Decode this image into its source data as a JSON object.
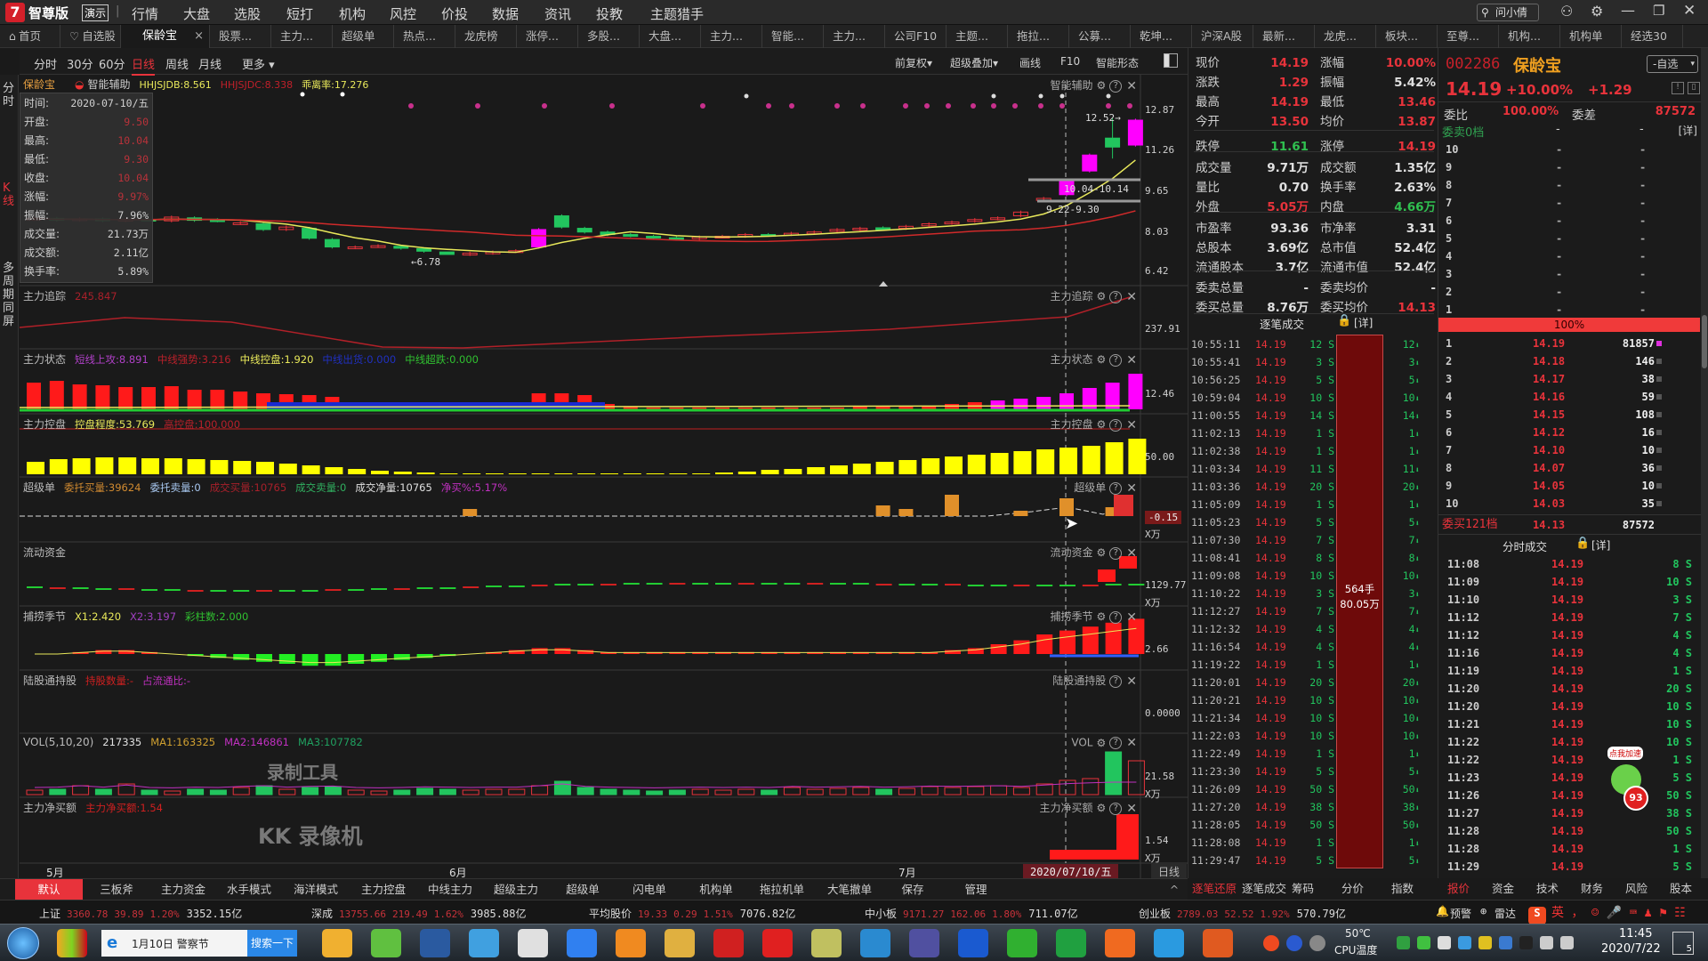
{
  "menu": {
    "logo_glyph": "7",
    "edition": "智尊版",
    "badge": "演示",
    "items": [
      "行情",
      "大盘",
      "选股",
      "短打",
      "机构",
      "风控",
      "价投",
      "数据",
      "资讯",
      "投教",
      "主题猎手"
    ],
    "search_label": "问小倩",
    "window_icons": [
      "user-icon",
      "gear-icon",
      "minimize-icon",
      "restore-icon",
      "close-icon"
    ]
  },
  "tabs": [
    {
      "label": "首页",
      "icon": "home-icon"
    },
    {
      "label": "自选股",
      "icon": "heart-icon"
    },
    {
      "label": "保龄宝",
      "active": true,
      "closable": true
    },
    {
      "label": "股票..."
    },
    {
      "label": "主力..."
    },
    {
      "label": "超级单"
    },
    {
      "label": "热点..."
    },
    {
      "label": "龙虎榜"
    },
    {
      "label": "涨停..."
    },
    {
      "label": "多股..."
    },
    {
      "label": "大盘..."
    },
    {
      "label": "主力..."
    },
    {
      "label": "智能..."
    },
    {
      "label": "主力..."
    },
    {
      "label": "公司F10"
    },
    {
      "label": "主题..."
    },
    {
      "label": "拖拉..."
    },
    {
      "label": "公募..."
    },
    {
      "label": "乾坤..."
    },
    {
      "label": "沪深A股"
    },
    {
      "label": "最新..."
    },
    {
      "label": "龙虎..."
    },
    {
      "label": "板块..."
    },
    {
      "label": "至尊..."
    },
    {
      "label": "机构..."
    },
    {
      "label": "机构单"
    },
    {
      "label": "经选30"
    }
  ],
  "period": {
    "items": [
      "分时",
      "30分",
      "60分",
      "日线",
      "周线",
      "月线",
      "更多 ▾"
    ],
    "active": "日线",
    "right_tools": [
      "前复权▾",
      "超级叠加▾",
      "画线",
      "F10",
      "智能形态"
    ]
  },
  "left_strip": [
    "分时",
    "K线",
    "多周期同屏"
  ],
  "main_panel": {
    "stock_name": "保龄宝",
    "indicator": "智能辅助",
    "params": [
      {
        "text": "HHJSJDB:8.561",
        "color": "#e8e85a"
      },
      {
        "text": "HHJSJDC:8.338",
        "color": "#c0202a"
      },
      {
        "text": "乖离率:17.276",
        "color": "#e8e85a"
      }
    ],
    "right_title": "智能辅助",
    "axis": [
      "12.87",
      "11.26",
      "9.65",
      "8.03",
      "6.42"
    ],
    "annotations": {
      "high": "12.52→",
      "zone_upper": "10.04-10.14",
      "zone_lower": "9.22-9.30",
      "low": "←6.78"
    },
    "kline": {
      "open": [
        8.45,
        8.5,
        8.42,
        8.48,
        8.4,
        8.46,
        8.4,
        8.52,
        8.44,
        8.3,
        8.28,
        8.05,
        8.1,
        7.65,
        7.32,
        7.38,
        7.38,
        7.28,
        7.15,
        7.05,
        7.1,
        7.18,
        7.35,
        8.6,
        8.1,
        7.95,
        7.85,
        7.78,
        7.72,
        7.68,
        7.75,
        7.78,
        7.85,
        7.85,
        7.92,
        7.98,
        8.05,
        8.12,
        8.1,
        8.2,
        8.3,
        8.38,
        8.48,
        8.6,
        9.22,
        9.45,
        10.4,
        11.72,
        11.44
      ],
      "close": [
        8.5,
        8.42,
        8.48,
        8.4,
        8.46,
        8.44,
        8.55,
        8.42,
        8.4,
        8.32,
        8.05,
        8.15,
        7.7,
        7.35,
        7.35,
        7.4,
        7.3,
        7.18,
        7.05,
        7.1,
        7.15,
        7.2,
        8.05,
        8.15,
        7.95,
        7.85,
        7.8,
        7.72,
        7.7,
        7.75,
        7.78,
        7.85,
        7.82,
        7.9,
        7.95,
        8.05,
        8.1,
        8.08,
        8.18,
        8.28,
        8.35,
        8.45,
        8.52,
        8.75,
        9.3,
        10.04,
        11.04,
        11.36,
        12.44
      ],
      "limit_up_days": [
        22,
        45,
        46,
        48
      ]
    }
  },
  "info_box": [
    {
      "label": "时间:",
      "value": "2020-07-10/五",
      "color": "#d0d0d0"
    },
    {
      "label": "开盘:",
      "value": "9.50",
      "color": "#b8323a"
    },
    {
      "label": "最高:",
      "value": "10.04",
      "color": "#b8323a"
    },
    {
      "label": "最低:",
      "value": "9.30",
      "color": "#b8323a"
    },
    {
      "label": "收盘:",
      "value": "10.04",
      "color": "#b8323a"
    },
    {
      "label": "涨幅:",
      "value": "9.97%",
      "color": "#b8323a"
    },
    {
      "label": "振幅:",
      "value": "7.96%",
      "color": "#d0d0d0"
    },
    {
      "label": "成交量:",
      "value": "21.73万",
      "color": "#d0d0d0"
    },
    {
      "label": "成交额:",
      "value": "2.11亿",
      "color": "#d0d0d0"
    },
    {
      "label": "换手率:",
      "value": "5.89%",
      "color": "#d0d0d0"
    }
  ],
  "panels": [
    {
      "title": "主力追踪",
      "params": [
        {
          "text": "245.847",
          "color": "#a8202a"
        }
      ],
      "right_title": "主力追踪",
      "gear": true,
      "axis": [
        "237.91"
      ]
    },
    {
      "title": "主力状态",
      "params": [
        {
          "text": "短线上攻:8.891",
          "color": "#b040c8"
        },
        {
          "text": "中线强势:3.216",
          "color": "#b8202a"
        },
        {
          "text": "中线控盘:1.920",
          "color": "#e8e85a"
        },
        {
          "text": "中线出货:0.000",
          "color": "#2030c0"
        },
        {
          "text": "中线超跌:0.000",
          "color": "#30c030"
        }
      ],
      "right_title": "主力状态",
      "gear": true,
      "axis": [
        "12.46"
      ]
    },
    {
      "title": "主力控盘",
      "params": [
        {
          "text": "控盘程度:53.769",
          "color": "#e8e85a"
        },
        {
          "text": "高控盘:100.000",
          "color": "#b8202a"
        }
      ],
      "right_title": "主力控盘",
      "gear": true,
      "axis": [
        "50.00"
      ]
    },
    {
      "title": "超级单",
      "params": [
        {
          "text": "委托买量:39624",
          "color": "#d08a30"
        },
        {
          "text": "委托卖量:0",
          "color": "#a8c8f0"
        },
        {
          "text": "成交买量:10765",
          "color": "#a8202a"
        },
        {
          "text": "成交卖量:0",
          "color": "#30b060"
        },
        {
          "text": "成交净量:10765",
          "color": "#e0e0e0"
        },
        {
          "text": "净买%:5.17%",
          "color": "#c030c0"
        }
      ],
      "right_title": "超级单",
      "gear": false,
      "axis": [
        "-0.15",
        "X万"
      ]
    },
    {
      "title": "流动资金",
      "params": [],
      "right_title": "流动资金",
      "gear": true,
      "axis": [
        "1129.77",
        "X万"
      ]
    },
    {
      "title": "捕捞季节",
      "params": [
        {
          "text": "X1:2.420",
          "color": "#e8e85a"
        },
        {
          "text": "X2:3.197",
          "color": "#a040c0"
        },
        {
          "text": "彩柱数:2.000",
          "color": "#30c030"
        }
      ],
      "right_title": "捕捞季节",
      "gear": true,
      "axis": [
        "2.66"
      ]
    },
    {
      "title": "陆股通持股",
      "params": [
        {
          "text": "持股数量:-",
          "color": "#d02020"
        },
        {
          "text": "占流通比:-",
          "color": "#c030c0"
        }
      ],
      "right_title": "陆股通持股",
      "gear": false,
      "axis": [
        "0.0000"
      ]
    },
    {
      "title": "VOL(5,10,20)",
      "params": [
        {
          "text": "217335",
          "color": "#e0e0e0"
        },
        {
          "text": "MA1:163325",
          "color": "#d0a030"
        },
        {
          "text": "MA2:146861",
          "color": "#c030c0"
        },
        {
          "text": "MA3:107782",
          "color": "#20a060"
        }
      ],
      "right_title": "VOL",
      "gear": true,
      "axis": [
        "21.58",
        "X万"
      ]
    },
    {
      "title": "主力净买额",
      "params": [
        {
          "text": "主力净买额:1.54",
          "color": "#d02020"
        }
      ],
      "right_title": "主力净买额",
      "gear": true,
      "axis": [
        "1.54",
        "X万"
      ]
    }
  ],
  "date_axis": {
    "labels": [
      "5月",
      "6月",
      "7月"
    ],
    "cursor_date": "2020/07/10/五",
    "period": "日线"
  },
  "watermark": {
    "line1": "录制工具",
    "line2": "KK 录像机"
  },
  "bottom_tabs": {
    "items": [
      "默认",
      "三板斧",
      "主力资金",
      "水手模式",
      "海洋模式",
      "主力控盘",
      "中线主力",
      "超级主力",
      "超级单",
      "闪电单",
      "机构单",
      "拖拉机单",
      "大笔撤单",
      "保存",
      "管理"
    ],
    "active": "默认",
    "collapse": "^"
  },
  "quote": {
    "rows": [
      [
        {
          "l": "现价",
          "v": "14.19",
          "c": "#e8333b"
        },
        {
          "l": "涨幅",
          "v": "10.00%",
          "c": "#e8333b"
        }
      ],
      [
        {
          "l": "涨跌",
          "v": "1.29",
          "c": "#e8333b"
        },
        {
          "l": "振幅",
          "v": "5.42%",
          "c": "#e0e0e0"
        }
      ],
      [
        {
          "l": "最高",
          "v": "14.19",
          "c": "#e8333b"
        },
        {
          "l": "最低",
          "v": "13.46",
          "c": "#e8333b"
        }
      ],
      [
        {
          "l": "今开",
          "v": "13.50",
          "c": "#e8333b"
        },
        {
          "l": "均价",
          "v": "13.87",
          "c": "#e8333b"
        }
      ],
      [
        {
          "l": "跌停",
          "v": "11.61",
          "c": "#30c050"
        },
        {
          "l": "涨停",
          "v": "14.19",
          "c": "#e8333b"
        }
      ],
      [
        {
          "l": "成交量",
          "v": "9.71万",
          "c": "#e0e0e0"
        },
        {
          "l": "成交额",
          "v": "1.35亿",
          "c": "#e0e0e0"
        }
      ],
      [
        {
          "l": "量比",
          "v": "0.70",
          "c": "#e0e0e0"
        },
        {
          "l": "换手率",
          "v": "2.63%",
          "c": "#e0e0e0"
        }
      ],
      [
        {
          "l": "外盘",
          "v": "5.05万",
          "c": "#e8333b"
        },
        {
          "l": "内盘",
          "v": "4.66万",
          "c": "#30c050"
        }
      ],
      [
        {
          "l": "市盈率",
          "v": "93.36",
          "c": "#e0e0e0"
        },
        {
          "l": "市净率",
          "v": "3.31",
          "c": "#e0e0e0"
        }
      ],
      [
        {
          "l": "总股本",
          "v": "3.69亿",
          "c": "#e0e0e0"
        },
        {
          "l": "总市值",
          "v": "52.4亿",
          "c": "#e0e0e0"
        }
      ],
      [
        {
          "l": "流通股本",
          "v": "3.7亿",
          "c": "#e0e0e0"
        },
        {
          "l": "流通市值",
          "v": "52.4亿",
          "c": "#e0e0e0"
        }
      ],
      [
        {
          "l": "委卖总量",
          "v": "-",
          "c": "#e0e0e0"
        },
        {
          "l": "委卖均价",
          "v": "-",
          "c": "#e0e0e0"
        }
      ],
      [
        {
          "l": "委买总量",
          "v": "8.76万",
          "c": "#e0e0e0"
        },
        {
          "l": "委买均价",
          "v": "14.13",
          "c": "#e8333b"
        }
      ]
    ],
    "trades_title": "逐笔成交",
    "detail_label": "[详]",
    "block_trade": {
      "line1": "564手",
      "line2": "80.05万"
    },
    "trades": [
      [
        "10:55:11",
        "14.19",
        "12 S",
        "12"
      ],
      [
        "10:55:41",
        "14.19",
        "3 S",
        "3"
      ],
      [
        "10:56:25",
        "14.19",
        "5 S",
        "5"
      ],
      [
        "10:59:04",
        "14.19",
        "10 S",
        "10"
      ],
      [
        "11:00:55",
        "14.19",
        "14 S",
        "14"
      ],
      [
        "11:02:13",
        "14.19",
        "1 S",
        "1"
      ],
      [
        "11:02:38",
        "14.19",
        "1 S",
        "1"
      ],
      [
        "11:03:34",
        "14.19",
        "11 S",
        "11"
      ],
      [
        "11:03:36",
        "14.19",
        "20 S",
        "20"
      ],
      [
        "11:05:09",
        "14.19",
        "1 S",
        "1"
      ],
      [
        "11:05:23",
        "14.19",
        "5 S",
        "5"
      ],
      [
        "11:07:30",
        "14.19",
        "7 S",
        "7"
      ],
      [
        "11:08:41",
        "14.19",
        "8 S",
        "8"
      ],
      [
        "11:09:08",
        "14.19",
        "10 S",
        "10"
      ],
      [
        "11:10:22",
        "14.19",
        "3 S",
        "3"
      ],
      [
        "11:12:27",
        "14.19",
        "7 S",
        "7"
      ],
      [
        "11:12:32",
        "14.19",
        "4 S",
        "4"
      ],
      [
        "11:16:54",
        "14.19",
        "4 S",
        "4"
      ],
      [
        "11:19:22",
        "14.19",
        "1 S",
        "1"
      ],
      [
        "11:20:01",
        "14.19",
        "20 S",
        "20"
      ],
      [
        "11:20:21",
        "14.19",
        "10 S",
        "10"
      ],
      [
        "11:21:34",
        "14.19",
        "10 S",
        "10"
      ],
      [
        "11:22:03",
        "14.19",
        "10 S",
        "10"
      ],
      [
        "11:22:49",
        "14.19",
        "1 S",
        "1"
      ],
      [
        "11:23:30",
        "14.19",
        "5 S",
        "5"
      ],
      [
        "11:26:09",
        "14.19",
        "50 S",
        "50"
      ],
      [
        "11:27:20",
        "14.19",
        "38 S",
        "38"
      ],
      [
        "11:28:05",
        "14.19",
        "50 S",
        "50"
      ],
      [
        "11:28:08",
        "14.19",
        "1 S",
        "1"
      ],
      [
        "11:29:47",
        "14.19",
        "5 S",
        "5"
      ]
    ],
    "tabs": [
      "逐笔还原",
      "逐笔成交",
      "筹码",
      "分价",
      "指数"
    ],
    "active_tab": "逐笔还原"
  },
  "order_book": {
    "code": "002286",
    "name": "保龄宝",
    "watch_button": "-自选",
    "price": "14.19",
    "change_pct": "+10.00%",
    "change": "+1.29",
    "ratio_label": "委比",
    "ratio": "100.00%",
    "diff_label": "委差",
    "diff": "87572",
    "ask_header": "委卖0档",
    "ask_levels": [
      "10",
      "9",
      "8",
      "7",
      "6",
      "5",
      "4",
      "3",
      "2",
      "1"
    ],
    "ask_placeholder": "-",
    "detail_label": "[详]",
    "ratio_bar": "100%",
    "bids": [
      [
        "1",
        "14.19",
        "81857"
      ],
      [
        "2",
        "14.18",
        "146"
      ],
      [
        "3",
        "14.17",
        "38"
      ],
      [
        "4",
        "14.16",
        "59"
      ],
      [
        "5",
        "14.15",
        "108"
      ],
      [
        "6",
        "14.12",
        "16"
      ],
      [
        "7",
        "14.10",
        "10"
      ],
      [
        "8",
        "14.07",
        "36"
      ],
      [
        "9",
        "14.05",
        "10"
      ],
      [
        "10",
        "14.03",
        "35"
      ]
    ],
    "bid_summary": {
      "label": "委买121档",
      "price": "14.13",
      "volume": "87572"
    },
    "minute_title": "分时成交",
    "minute_trades": [
      [
        "11:08",
        "14.19",
        "8 S"
      ],
      [
        "11:09",
        "14.19",
        "10 S"
      ],
      [
        "11:10",
        "14.19",
        "3 S"
      ],
      [
        "11:12",
        "14.19",
        "7 S"
      ],
      [
        "11:12",
        "14.19",
        "4 S"
      ],
      [
        "11:16",
        "14.19",
        "4 S"
      ],
      [
        "11:19",
        "14.19",
        "1 S"
      ],
      [
        "11:20",
        "14.19",
        "20 S"
      ],
      [
        "11:20",
        "14.19",
        "10 S"
      ],
      [
        "11:21",
        "14.19",
        "10 S"
      ],
      [
        "11:22",
        "14.19",
        "10 S"
      ],
      [
        "11:22",
        "14.19",
        "1 S"
      ],
      [
        "11:23",
        "14.19",
        "5 S"
      ],
      [
        "11:26",
        "14.19",
        "50 S"
      ],
      [
        "11:27",
        "14.19",
        "38 S"
      ],
      [
        "11:28",
        "14.19",
        "50 S"
      ],
      [
        "11:28",
        "14.19",
        "1 S"
      ],
      [
        "11:29",
        "14.19",
        "5 S"
      ]
    ],
    "promo": {
      "label": "点我加速",
      "badge": "93"
    },
    "tabs": [
      "报价",
      "资金",
      "技术",
      "财务",
      "风险",
      "股本"
    ],
    "active_tab": "报价"
  },
  "index_bar": [
    {
      "name": "上证",
      "vals": [
        "3360.78",
        "39.89",
        "1.20%"
      ],
      "amount": "3352.15亿"
    },
    {
      "name": "深成",
      "vals": [
        "13755.66",
        "219.49",
        "1.62%"
      ],
      "amount": "3985.88亿"
    },
    {
      "name": "平均股价",
      "vals": [
        "19.33",
        "0.29",
        "1.51%"
      ],
      "amount": "7076.82亿"
    },
    {
      "name": "中小板",
      "vals": [
        "9171.27",
        "162.06",
        "1.80%"
      ],
      "amount": "711.07亿"
    },
    {
      "name": "创业板",
      "vals": [
        "2789.03",
        "52.52",
        "1.92%"
      ],
      "amount": "570.79亿"
    }
  ],
  "alerts": [
    "预警",
    "雷达"
  ],
  "taskbar": {
    "search_text": "1月10日 警察节",
    "search_button": "搜索一下",
    "cpu_temp": "50℃",
    "cpu_label": "CPU温度",
    "time": "11:45",
    "date": "2020/7/22",
    "notification_count": "5",
    "apps": [
      "browser-360-icon",
      "ie-green-icon",
      "penguin-game-icon",
      "notebook-icon",
      "store-bag-icon",
      "baidu-netdisk-icon",
      "music-player-icon",
      "raccoon-game-icon",
      "trading-app-icon",
      "trading-app-active-icon",
      "folder-icon",
      "network-icon",
      "media-icon",
      "n-app-icon",
      "wechat-icon",
      "green-app-icon",
      "firefox-icon",
      "w-app-icon",
      "avatar-app-icon"
    ]
  },
  "colors": {
    "up": "#e8333b",
    "down": "#22c55e",
    "limit_up": "#ff00ff",
    "bg": "#1a1a1a",
    "accent": "#e8333b"
  }
}
